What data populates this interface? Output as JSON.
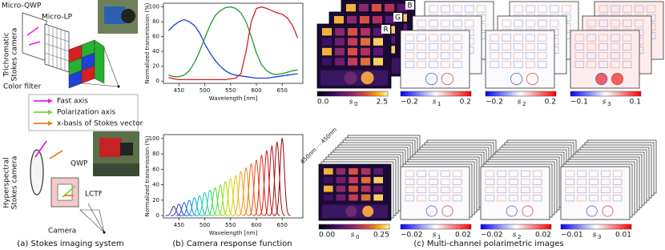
{
  "panel_a": {
    "caption": "(a) Stokes imaging system",
    "top_title": [
      "Trichromatic",
      "Stokes camera"
    ],
    "top_labels": [
      "Micro-QWP",
      "Micro-LP",
      "Color filter"
    ],
    "legend": [
      {
        "label": "Fast axis",
        "color": "#e81ce8"
      },
      {
        "label": "Polarization axis",
        "color": "#7cd13a"
      },
      {
        "label": "x-basis of Stokes vector",
        "color": "#f07a1a"
      }
    ],
    "bottom_title": [
      "Hyperspectral",
      "Stokes camera"
    ],
    "bottom_labels": [
      "QWP",
      "LCTF",
      "Camera"
    ]
  },
  "panel_b": {
    "caption": "(b) Camera response function"
  },
  "chart_data": [
    {
      "type": "line",
      "y_label": "Normalized transmission (%)",
      "x_label": "Wavelength [nm]",
      "x": [
        430,
        440,
        450,
        460,
        470,
        480,
        490,
        500,
        510,
        520,
        530,
        540,
        550,
        560,
        570,
        580,
        590,
        600,
        610,
        620,
        630,
        640,
        650,
        660,
        670,
        680
      ],
      "series": [
        {
          "color": "#1f3fdc",
          "values": [
            68,
            75,
            80,
            83,
            80,
            75,
            65,
            50,
            38,
            28,
            20,
            14,
            10,
            8,
            7,
            6,
            5,
            4,
            4,
            4,
            5,
            6,
            7,
            8,
            9,
            10
          ]
        },
        {
          "color": "#1e9c2e",
          "values": [
            8,
            6,
            6,
            8,
            14,
            25,
            40,
            58,
            75,
            88,
            95,
            99,
            100,
            98,
            92,
            80,
            60,
            38,
            22,
            14,
            10,
            9,
            10,
            12,
            14,
            15
          ]
        },
        {
          "color": "#d61f1f",
          "values": [
            5,
            3,
            2,
            2,
            2,
            2,
            2,
            2,
            2,
            2,
            2,
            2,
            3,
            4,
            10,
            40,
            80,
            98,
            100,
            98,
            95,
            92,
            90,
            85,
            75,
            58
          ]
        }
      ],
      "xlim": [
        420,
        690
      ],
      "ylim": [
        -3,
        105
      ],
      "xticks": [
        450,
        500,
        550,
        600,
        650
      ],
      "yticks": [
        0,
        20,
        40,
        60,
        80,
        100
      ]
    },
    {
      "type": "peaks",
      "y_label": "Normalized transmission (%)",
      "x_label": "Wavelength [nm]",
      "x": [
        440,
        450,
        460,
        470,
        480,
        490,
        500,
        510,
        520,
        530,
        540,
        550,
        560,
        570,
        580,
        590,
        600,
        610,
        620,
        630,
        640,
        650
      ],
      "values": [
        12,
        15,
        17,
        20,
        23,
        26,
        30,
        33,
        36,
        40,
        44,
        48,
        52,
        57,
        62,
        67,
        72,
        78,
        84,
        90,
        95,
        100
      ],
      "colors": [
        "#5a1f8f",
        "#3b2fc0",
        "#2050e0",
        "#1878f0",
        "#10a0e8",
        "#10c0d0",
        "#10d0a8",
        "#20d878",
        "#40e040",
        "#70e020",
        "#a0e010",
        "#c8d810",
        "#e8c810",
        "#f0a810",
        "#f08810",
        "#f06810",
        "#e84818",
        "#e02818",
        "#d01818",
        "#c01010",
        "#a80c0c",
        "#900808"
      ],
      "xlim": [
        420,
        690
      ],
      "ylim": [
        -3,
        105
      ],
      "xticks": [
        450,
        500,
        550,
        600,
        650
      ],
      "yticks": [
        0,
        20,
        40,
        60,
        80,
        100
      ]
    }
  ],
  "panel_c": {
    "caption": "(c) Multi-channel polarimetric images",
    "channel_labels": [
      "B",
      "G",
      "R"
    ],
    "stack_label": "650nm ··· 450nm",
    "colorbars_top": [
      {
        "symbol": "s",
        "index": "0",
        "min": "0.0",
        "max": "2.5",
        "colormap": "inferno"
      },
      {
        "symbol": "s",
        "index": "1",
        "min": "−0.2",
        "max": "0.2",
        "colormap": "bwr"
      },
      {
        "symbol": "s",
        "index": "2",
        "min": "−0.2",
        "max": "0.2",
        "colormap": "bwr"
      },
      {
        "symbol": "s",
        "index": "3",
        "min": "−0.1",
        "max": "0.1",
        "colormap": "bwr"
      }
    ],
    "colorbars_bottom": [
      {
        "symbol": "s",
        "index": "0",
        "min": "0.00",
        "max": "0.25",
        "colormap": "inferno"
      },
      {
        "symbol": "s",
        "index": "1",
        "min": "−0.02",
        "max": "0.02",
        "colormap": "bwr"
      },
      {
        "symbol": "s",
        "index": "2",
        "min": "−0.02",
        "max": "0.02",
        "colormap": "bwr"
      },
      {
        "symbol": "s",
        "index": "3",
        "min": "−0.01",
        "max": "0.01",
        "colormap": "bwr"
      }
    ]
  }
}
